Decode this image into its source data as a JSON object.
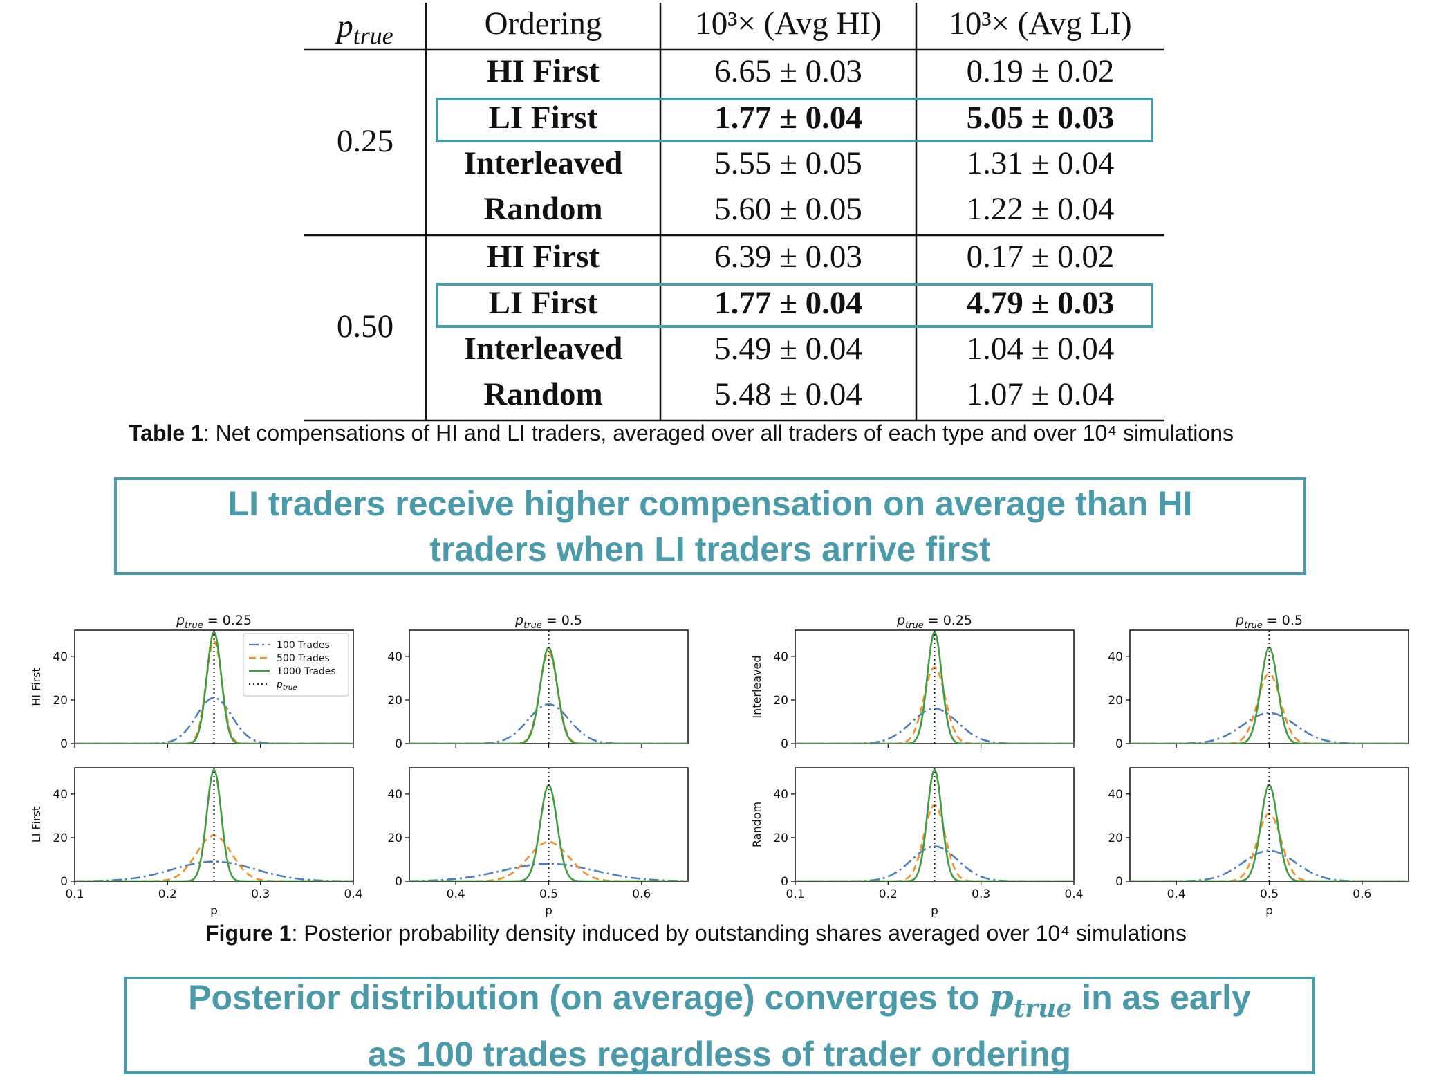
{
  "table": {
    "headers": {
      "ptrue_base": "p",
      "ptrue_sub": "true",
      "ordering": "Ordering",
      "avg_hi": "10³× (Avg HI)",
      "avg_li": "10³× (Avg LI)"
    },
    "groups": [
      {
        "ptrue": "0.25",
        "rows": [
          {
            "ordering": "HI First",
            "hi": "6.65 ± 0.03",
            "li": "0.19 ± 0.02",
            "highlight": false
          },
          {
            "ordering": "LI First",
            "hi": "1.77 ± 0.04",
            "li": "5.05 ± 0.03",
            "highlight": true
          },
          {
            "ordering": "Interleaved",
            "hi": "5.55 ± 0.05",
            "li": "1.31 ± 0.04",
            "highlight": false
          },
          {
            "ordering": "Random",
            "hi": "5.60 ± 0.05",
            "li": "1.22 ± 0.04",
            "highlight": false
          }
        ]
      },
      {
        "ptrue": "0.50",
        "rows": [
          {
            "ordering": "HI First",
            "hi": "6.39 ± 0.03",
            "li": "0.17 ± 0.02",
            "highlight": false
          },
          {
            "ordering": "LI First",
            "hi": "1.77 ± 0.04",
            "li": "4.79 ± 0.03",
            "highlight": true
          },
          {
            "ordering": "Interleaved",
            "hi": "5.49 ± 0.04",
            "li": "1.04 ± 0.04",
            "highlight": false
          },
          {
            "ordering": "Random",
            "hi": "5.48 ± 0.04",
            "li": "1.07 ± 0.04",
            "highlight": false
          }
        ]
      }
    ],
    "caption_label": "Table 1",
    "caption_text": ": Net compensations of HI and LI traders, averaged over all traders of each type and over 10⁴ simulations"
  },
  "callout_1": {
    "line1": "LI traders receive higher compensation on average than HI",
    "line2": "traders when LI traders arrive first"
  },
  "callout_2": {
    "line1_before": "Posterior distribution (on average) converges to ",
    "line1_p": "p",
    "line1_sub": "true",
    "line1_after": " in as early",
    "line2": "as 100 trades regardless of trader ordering"
  },
  "figure_caption": {
    "label": "Figure 1",
    "text": ": Posterior probability density induced by outstanding shares averaged over 10⁴ simulations"
  },
  "colors": {
    "accent": "#4a9aa9",
    "series_100": "#4f7fc0",
    "series_500": "#f28e2b",
    "series_1000": "#3f9d3f",
    "ptrue_line": "#222222"
  },
  "chart_data": [
    {
      "type": "line",
      "title_p": "p",
      "title_sub": "true",
      "title_value": "= 0.25",
      "row_label": "HI First",
      "xlim": [
        0.1,
        0.4
      ],
      "ylim": [
        0,
        52
      ],
      "xticks": [
        "0.1",
        "0.2",
        "0.3",
        "0.4"
      ],
      "show_xticks": false,
      "yticks": [
        "0",
        "20",
        "40"
      ],
      "ptrue": 0.25,
      "legend": true,
      "series": [
        {
          "name": "100 Trades",
          "style": "dashdot",
          "center": 0.25,
          "peak": 21
        },
        {
          "name": "500 Trades",
          "style": "dashed",
          "center": 0.25,
          "peak": 47
        },
        {
          "name": "1000 Trades",
          "style": "solid",
          "center": 0.25,
          "peak": 51
        }
      ],
      "ptrue_legend": "p",
      "ptrue_legend_sub": "true"
    },
    {
      "type": "line",
      "title_p": "p",
      "title_sub": "true",
      "title_value": "= 0.5",
      "row_label": "",
      "xlim": [
        0.35,
        0.65
      ],
      "ylim": [
        0,
        52
      ],
      "xticks": [
        "0.4",
        "0.5",
        "0.6"
      ],
      "show_xticks": false,
      "yticks": [
        "0",
        "20",
        "40"
      ],
      "ptrue": 0.5,
      "legend": false,
      "series": [
        {
          "name": "100 Trades",
          "style": "dashdot",
          "center": 0.5,
          "peak": 18
        },
        {
          "name": "500 Trades",
          "style": "dashed",
          "center": 0.5,
          "peak": 42
        },
        {
          "name": "1000 Trades",
          "style": "solid",
          "center": 0.5,
          "peak": 44
        }
      ]
    },
    {
      "type": "line",
      "title_p": "p",
      "title_sub": "true",
      "title_value": "= 0.25",
      "row_label": "Interleaved",
      "xlim": [
        0.1,
        0.4
      ],
      "ylim": [
        0,
        52
      ],
      "xticks": [
        "0.1",
        "0.2",
        "0.3",
        "0.4"
      ],
      "show_xticks": false,
      "yticks": [
        "0",
        "20",
        "40"
      ],
      "ptrue": 0.25,
      "legend": false,
      "series": [
        {
          "name": "100 Trades",
          "style": "dashdot",
          "center": 0.25,
          "peak": 16
        },
        {
          "name": "500 Trades",
          "style": "dashed",
          "center": 0.25,
          "peak": 35
        },
        {
          "name": "1000 Trades",
          "style": "solid",
          "center": 0.25,
          "peak": 51
        }
      ]
    },
    {
      "type": "line",
      "title_p": "p",
      "title_sub": "true",
      "title_value": "= 0.5",
      "row_label": "",
      "xlim": [
        0.35,
        0.65
      ],
      "ylim": [
        0,
        52
      ],
      "xticks": [
        "0.4",
        "0.5",
        "0.6"
      ],
      "show_xticks": false,
      "yticks": [
        "0",
        "20",
        "40"
      ],
      "ptrue": 0.5,
      "legend": false,
      "series": [
        {
          "name": "100 Trades",
          "style": "dashdot",
          "center": 0.5,
          "peak": 14
        },
        {
          "name": "500 Trades",
          "style": "dashed",
          "center": 0.5,
          "peak": 32
        },
        {
          "name": "1000 Trades",
          "style": "solid",
          "center": 0.5,
          "peak": 44
        }
      ]
    },
    {
      "type": "line",
      "title_p": "",
      "title_sub": "",
      "title_value": "",
      "row_label": "LI First",
      "xlim": [
        0.1,
        0.4
      ],
      "ylim": [
        0,
        52
      ],
      "xticks": [
        "0.1",
        "0.2",
        "0.3",
        "0.4"
      ],
      "show_xticks": true,
      "xlabel": "p",
      "yticks": [
        "0",
        "20",
        "40"
      ],
      "ptrue": 0.25,
      "legend": false,
      "series": [
        {
          "name": "100 Trades",
          "style": "dashdot",
          "center": 0.25,
          "peak": 9
        },
        {
          "name": "500 Trades",
          "style": "dashed",
          "center": 0.25,
          "peak": 21
        },
        {
          "name": "1000 Trades",
          "style": "solid",
          "center": 0.25,
          "peak": 51
        }
      ]
    },
    {
      "type": "line",
      "title_p": "",
      "title_sub": "",
      "title_value": "",
      "row_label": "",
      "xlim": [
        0.35,
        0.65
      ],
      "ylim": [
        0,
        52
      ],
      "xticks": [
        "0.4",
        "0.5",
        "0.6"
      ],
      "show_xticks": true,
      "xlabel": "p",
      "yticks": [
        "0",
        "20",
        "40"
      ],
      "ptrue": 0.5,
      "legend": false,
      "series": [
        {
          "name": "100 Trades",
          "style": "dashdot",
          "center": 0.5,
          "peak": 8
        },
        {
          "name": "500 Trades",
          "style": "dashed",
          "center": 0.5,
          "peak": 18
        },
        {
          "name": "1000 Trades",
          "style": "solid",
          "center": 0.5,
          "peak": 44
        }
      ]
    },
    {
      "type": "line",
      "title_p": "",
      "title_sub": "",
      "title_value": "",
      "row_label": "Random",
      "xlim": [
        0.1,
        0.4
      ],
      "ylim": [
        0,
        52
      ],
      "xticks": [
        "0.1",
        "0.2",
        "0.3",
        "0.4"
      ],
      "show_xticks": true,
      "xlabel": "p",
      "yticks": [
        "0",
        "20",
        "40"
      ],
      "ptrue": 0.25,
      "legend": false,
      "series": [
        {
          "name": "100 Trades",
          "style": "dashdot",
          "center": 0.25,
          "peak": 16
        },
        {
          "name": "500 Trades",
          "style": "dashed",
          "center": 0.25,
          "peak": 35
        },
        {
          "name": "1000 Trades",
          "style": "solid",
          "center": 0.25,
          "peak": 51
        }
      ]
    },
    {
      "type": "line",
      "title_p": "",
      "title_sub": "",
      "title_value": "",
      "row_label": "",
      "xlim": [
        0.35,
        0.65
      ],
      "ylim": [
        0,
        52
      ],
      "xticks": [
        "0.4",
        "0.5",
        "0.6"
      ],
      "show_xticks": true,
      "xlabel": "p",
      "yticks": [
        "0",
        "20",
        "40"
      ],
      "ptrue": 0.5,
      "legend": false,
      "series": [
        {
          "name": "100 Trades",
          "style": "dashdot",
          "center": 0.5,
          "peak": 14
        },
        {
          "name": "500 Trades",
          "style": "dashed",
          "center": 0.5,
          "peak": 31
        },
        {
          "name": "1000 Trades",
          "style": "solid",
          "center": 0.5,
          "peak": 44
        }
      ]
    }
  ]
}
